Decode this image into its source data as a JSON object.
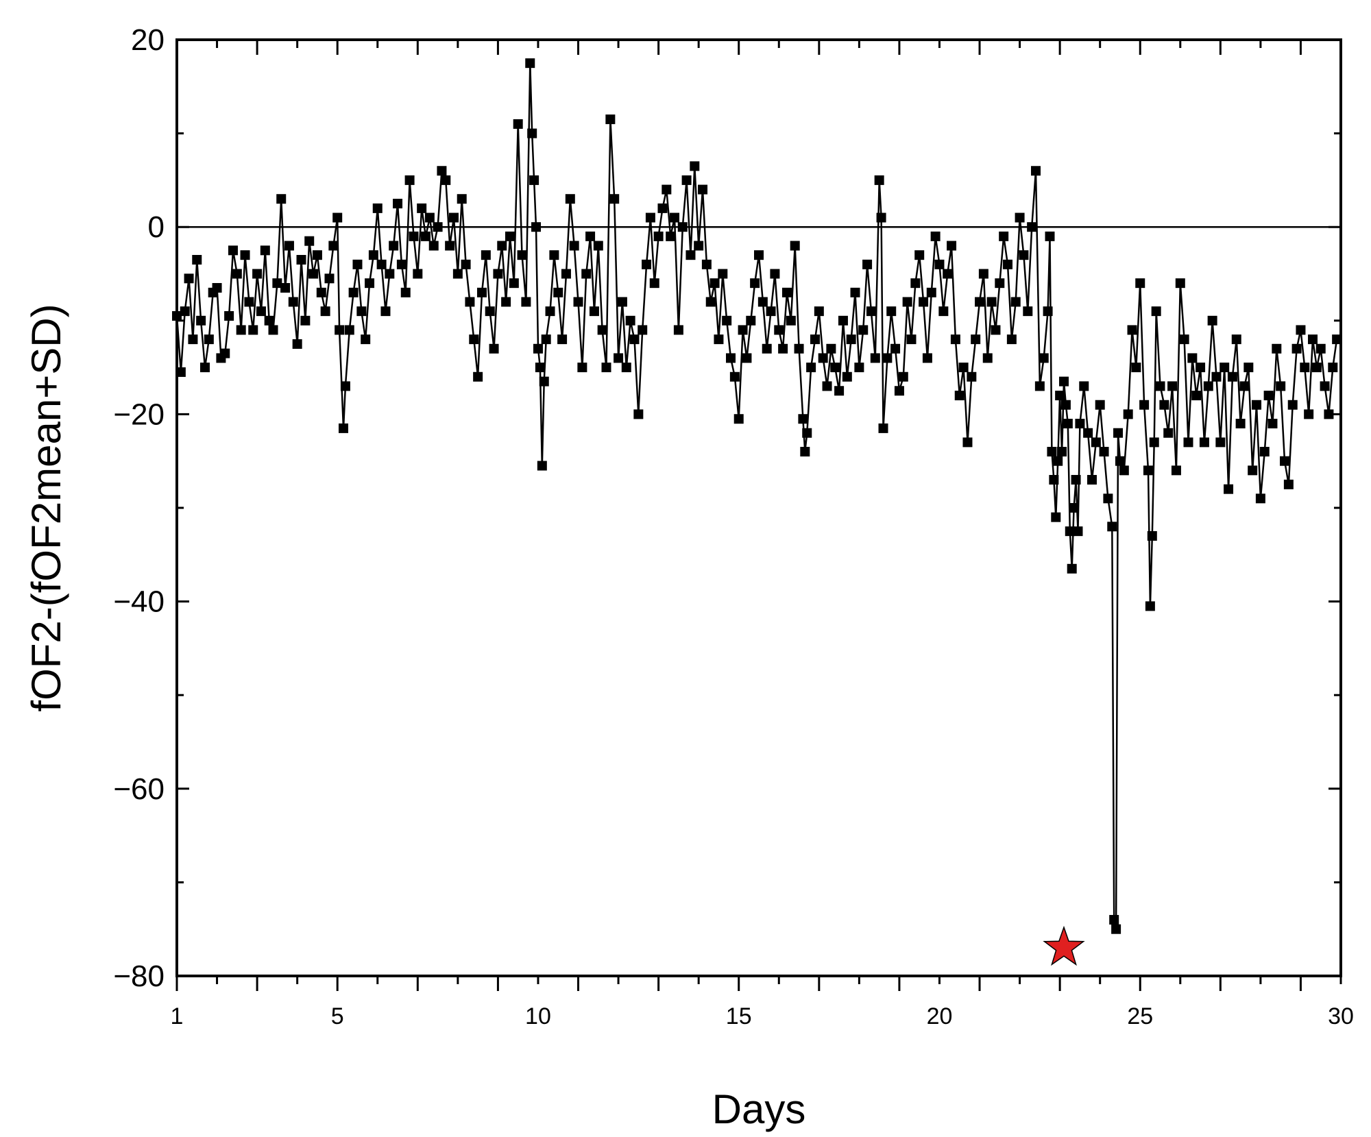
{
  "chart_data": {
    "type": "scatter",
    "title": "",
    "xlabel": "Days",
    "ylabel": "fOF2-(fOF2mean+SD)",
    "xlim": [
      1,
      30
    ],
    "ylim": [
      -80,
      20
    ],
    "grid": false,
    "x_ticks": [
      1,
      5,
      10,
      15,
      20,
      25,
      30
    ],
    "x_tick_labels": [
      "1",
      "5",
      "10",
      "15",
      "20",
      "25",
      "30"
    ],
    "y_ticks": [
      20,
      0,
      -20,
      -40,
      -60,
      -80
    ],
    "y_tick_labels": [
      "20",
      "0",
      "−20",
      "−40",
      "−60",
      "−80"
    ],
    "reference_line": {
      "y": 0
    },
    "series": [
      {
        "marker": "square",
        "color": "#000000",
        "points": [
          [
            1.0,
            -9.5
          ],
          [
            1.1,
            -15.5
          ],
          [
            1.2,
            -9
          ],
          [
            1.3,
            -5.5
          ],
          [
            1.4,
            -12
          ],
          [
            1.5,
            -3.5
          ],
          [
            1.6,
            -10
          ],
          [
            1.7,
            -15
          ],
          [
            1.8,
            -12
          ],
          [
            1.9,
            -7
          ],
          [
            2.0,
            -6.5
          ],
          [
            2.1,
            -14
          ],
          [
            2.2,
            -13.5
          ],
          [
            2.3,
            -9.5
          ],
          [
            2.4,
            -2.5
          ],
          [
            2.5,
            -5
          ],
          [
            2.6,
            -11
          ],
          [
            2.7,
            -3
          ],
          [
            2.8,
            -8
          ],
          [
            2.9,
            -11
          ],
          [
            3.0,
            -5
          ],
          [
            3.1,
            -9
          ],
          [
            3.2,
            -2.5
          ],
          [
            3.3,
            -10
          ],
          [
            3.4,
            -11
          ],
          [
            3.5,
            -6
          ],
          [
            3.6,
            3
          ],
          [
            3.7,
            -6.5
          ],
          [
            3.8,
            -2
          ],
          [
            3.9,
            -8
          ],
          [
            4.0,
            -12.5
          ],
          [
            4.1,
            -3.5
          ],
          [
            4.2,
            -10
          ],
          [
            4.3,
            -1.5
          ],
          [
            4.4,
            -5
          ],
          [
            4.5,
            -3
          ],
          [
            4.6,
            -7
          ],
          [
            4.7,
            -9
          ],
          [
            4.8,
            -5.5
          ],
          [
            4.9,
            -2
          ],
          [
            5.0,
            1
          ],
          [
            5.05,
            -11
          ],
          [
            5.15,
            -21.5
          ],
          [
            5.2,
            -17
          ],
          [
            5.3,
            -11
          ],
          [
            5.4,
            -7
          ],
          [
            5.5,
            -4
          ],
          [
            5.6,
            -9
          ],
          [
            5.7,
            -12
          ],
          [
            5.8,
            -6
          ],
          [
            5.9,
            -3
          ],
          [
            6.0,
            2
          ],
          [
            6.1,
            -4
          ],
          [
            6.2,
            -9
          ],
          [
            6.3,
            -5
          ],
          [
            6.4,
            -2
          ],
          [
            6.5,
            2.5
          ],
          [
            6.6,
            -4
          ],
          [
            6.7,
            -7
          ],
          [
            6.8,
            5
          ],
          [
            6.9,
            -1
          ],
          [
            7.0,
            -5
          ],
          [
            7.1,
            2
          ],
          [
            7.2,
            -1
          ],
          [
            7.3,
            1
          ],
          [
            7.4,
            -2
          ],
          [
            7.5,
            0
          ],
          [
            7.6,
            6
          ],
          [
            7.7,
            5
          ],
          [
            7.8,
            -2
          ],
          [
            7.9,
            1
          ],
          [
            8.0,
            -5
          ],
          [
            8.1,
            3
          ],
          [
            8.2,
            -4
          ],
          [
            8.3,
            -8
          ],
          [
            8.4,
            -12
          ],
          [
            8.5,
            -16
          ],
          [
            8.6,
            -7
          ],
          [
            8.7,
            -3
          ],
          [
            8.8,
            -9
          ],
          [
            8.9,
            -13
          ],
          [
            9.0,
            -5
          ],
          [
            9.1,
            -2
          ],
          [
            9.2,
            -8
          ],
          [
            9.3,
            -1
          ],
          [
            9.4,
            -6
          ],
          [
            9.5,
            11
          ],
          [
            9.6,
            -3
          ],
          [
            9.7,
            -8
          ],
          [
            9.8,
            17.5
          ],
          [
            9.85,
            10
          ],
          [
            9.9,
            5
          ],
          [
            9.95,
            0
          ],
          [
            10.0,
            -13
          ],
          [
            10.05,
            -15
          ],
          [
            10.1,
            -25.5
          ],
          [
            10.15,
            -16.5
          ],
          [
            10.2,
            -12
          ],
          [
            10.3,
            -9
          ],
          [
            10.4,
            -3
          ],
          [
            10.5,
            -7
          ],
          [
            10.6,
            -12
          ],
          [
            10.7,
            -5
          ],
          [
            10.8,
            3
          ],
          [
            10.9,
            -2
          ],
          [
            11.0,
            -8
          ],
          [
            11.1,
            -15
          ],
          [
            11.2,
            -5
          ],
          [
            11.3,
            -1
          ],
          [
            11.4,
            -9
          ],
          [
            11.5,
            -2
          ],
          [
            11.6,
            -11
          ],
          [
            11.7,
            -15
          ],
          [
            11.8,
            11.5
          ],
          [
            11.9,
            3
          ],
          [
            12.0,
            -14
          ],
          [
            12.1,
            -8
          ],
          [
            12.2,
            -15
          ],
          [
            12.3,
            -10
          ],
          [
            12.4,
            -12
          ],
          [
            12.5,
            -20
          ],
          [
            12.6,
            -11
          ],
          [
            12.7,
            -4
          ],
          [
            12.8,
            1
          ],
          [
            12.9,
            -6
          ],
          [
            13.0,
            -1
          ],
          [
            13.1,
            2
          ],
          [
            13.2,
            4
          ],
          [
            13.3,
            -1
          ],
          [
            13.4,
            1
          ],
          [
            13.5,
            -11
          ],
          [
            13.6,
            0
          ],
          [
            13.7,
            5
          ],
          [
            13.8,
            -3
          ],
          [
            13.9,
            6.5
          ],
          [
            14.0,
            -2
          ],
          [
            14.1,
            4
          ],
          [
            14.2,
            -4
          ],
          [
            14.3,
            -8
          ],
          [
            14.4,
            -6
          ],
          [
            14.5,
            -12
          ],
          [
            14.6,
            -5
          ],
          [
            14.7,
            -10
          ],
          [
            14.8,
            -14
          ],
          [
            14.9,
            -16
          ],
          [
            15.0,
            -20.5
          ],
          [
            15.1,
            -11
          ],
          [
            15.2,
            -14
          ],
          [
            15.3,
            -10
          ],
          [
            15.4,
            -6
          ],
          [
            15.5,
            -3
          ],
          [
            15.6,
            -8
          ],
          [
            15.7,
            -13
          ],
          [
            15.8,
            -9
          ],
          [
            15.9,
            -5
          ],
          [
            16.0,
            -11
          ],
          [
            16.1,
            -13
          ],
          [
            16.2,
            -7
          ],
          [
            16.3,
            -10
          ],
          [
            16.4,
            -2
          ],
          [
            16.5,
            -13
          ],
          [
            16.6,
            -20.5
          ],
          [
            16.65,
            -24
          ],
          [
            16.7,
            -22
          ],
          [
            16.8,
            -15
          ],
          [
            16.9,
            -12
          ],
          [
            17.0,
            -9
          ],
          [
            17.1,
            -14
          ],
          [
            17.2,
            -17
          ],
          [
            17.3,
            -13
          ],
          [
            17.4,
            -15
          ],
          [
            17.5,
            -17.5
          ],
          [
            17.6,
            -10
          ],
          [
            17.7,
            -16
          ],
          [
            17.8,
            -12
          ],
          [
            17.9,
            -7
          ],
          [
            18.0,
            -15
          ],
          [
            18.1,
            -11
          ],
          [
            18.2,
            -4
          ],
          [
            18.3,
            -9
          ],
          [
            18.4,
            -14
          ],
          [
            18.5,
            5
          ],
          [
            18.55,
            1
          ],
          [
            18.6,
            -21.5
          ],
          [
            18.7,
            -14
          ],
          [
            18.8,
            -9
          ],
          [
            18.9,
            -13
          ],
          [
            19.0,
            -17.5
          ],
          [
            19.1,
            -16
          ],
          [
            19.2,
            -8
          ],
          [
            19.3,
            -12
          ],
          [
            19.4,
            -6
          ],
          [
            19.5,
            -3
          ],
          [
            19.6,
            -8
          ],
          [
            19.7,
            -14
          ],
          [
            19.8,
            -7
          ],
          [
            19.9,
            -1
          ],
          [
            20.0,
            -4
          ],
          [
            20.1,
            -9
          ],
          [
            20.2,
            -5
          ],
          [
            20.3,
            -2
          ],
          [
            20.4,
            -12
          ],
          [
            20.5,
            -18
          ],
          [
            20.6,
            -15
          ],
          [
            20.7,
            -23
          ],
          [
            20.8,
            -16
          ],
          [
            20.9,
            -12
          ],
          [
            21.0,
            -8
          ],
          [
            21.1,
            -5
          ],
          [
            21.2,
            -14
          ],
          [
            21.3,
            -8
          ],
          [
            21.4,
            -11
          ],
          [
            21.5,
            -6
          ],
          [
            21.6,
            -1
          ],
          [
            21.7,
            -4
          ],
          [
            21.8,
            -12
          ],
          [
            21.9,
            -8
          ],
          [
            22.0,
            1
          ],
          [
            22.1,
            -3
          ],
          [
            22.2,
            -9
          ],
          [
            22.3,
            0
          ],
          [
            22.4,
            6
          ],
          [
            22.5,
            -17
          ],
          [
            22.6,
            -14
          ],
          [
            22.7,
            -9
          ],
          [
            22.75,
            -1
          ],
          [
            22.8,
            -24
          ],
          [
            22.85,
            -27
          ],
          [
            22.9,
            -31
          ],
          [
            22.95,
            -25
          ],
          [
            23.0,
            -18
          ],
          [
            23.05,
            -24
          ],
          [
            23.1,
            -16.5
          ],
          [
            23.15,
            -19
          ],
          [
            23.2,
            -21
          ],
          [
            23.25,
            -32.5
          ],
          [
            23.3,
            -36.5
          ],
          [
            23.35,
            -30
          ],
          [
            23.4,
            -27
          ],
          [
            23.45,
            -32.5
          ],
          [
            23.5,
            -21
          ],
          [
            23.6,
            -17
          ],
          [
            23.7,
            -22
          ],
          [
            23.8,
            -27
          ],
          [
            23.9,
            -23
          ],
          [
            24.0,
            -19
          ],
          [
            24.1,
            -24
          ],
          [
            24.2,
            -29
          ],
          [
            24.3,
            -32
          ],
          [
            24.35,
            -74
          ],
          [
            24.4,
            -75
          ],
          [
            24.45,
            -22
          ],
          [
            24.5,
            -25
          ],
          [
            24.6,
            -26
          ],
          [
            24.7,
            -20
          ],
          [
            24.8,
            -11
          ],
          [
            24.9,
            -15
          ],
          [
            25.0,
            -6
          ],
          [
            25.1,
            -19
          ],
          [
            25.2,
            -26
          ],
          [
            25.25,
            -40.5
          ],
          [
            25.3,
            -33
          ],
          [
            25.35,
            -23
          ],
          [
            25.4,
            -9
          ],
          [
            25.5,
            -17
          ],
          [
            25.6,
            -19
          ],
          [
            25.7,
            -22
          ],
          [
            25.8,
            -17
          ],
          [
            25.9,
            -26
          ],
          [
            26.0,
            -6
          ],
          [
            26.1,
            -12
          ],
          [
            26.2,
            -23
          ],
          [
            26.3,
            -14
          ],
          [
            26.4,
            -18
          ],
          [
            26.5,
            -15
          ],
          [
            26.6,
            -23
          ],
          [
            26.7,
            -17
          ],
          [
            26.8,
            -10
          ],
          [
            26.9,
            -16
          ],
          [
            27.0,
            -23
          ],
          [
            27.1,
            -15
          ],
          [
            27.2,
            -28
          ],
          [
            27.3,
            -16
          ],
          [
            27.4,
            -12
          ],
          [
            27.5,
            -21
          ],
          [
            27.6,
            -17
          ],
          [
            27.7,
            -15
          ],
          [
            27.8,
            -26
          ],
          [
            27.9,
            -19
          ],
          [
            28.0,
            -29
          ],
          [
            28.1,
            -24
          ],
          [
            28.2,
            -18
          ],
          [
            28.3,
            -21
          ],
          [
            28.4,
            -13
          ],
          [
            28.5,
            -17
          ],
          [
            28.6,
            -25
          ],
          [
            28.7,
            -27.5
          ],
          [
            28.8,
            -19
          ],
          [
            28.9,
            -13
          ],
          [
            29.0,
            -11
          ],
          [
            29.1,
            -15
          ],
          [
            29.2,
            -20
          ],
          [
            29.3,
            -12
          ],
          [
            29.4,
            -15
          ],
          [
            29.5,
            -13
          ],
          [
            29.6,
            -17
          ],
          [
            29.7,
            -20
          ],
          [
            29.8,
            -15
          ],
          [
            29.9,
            -12
          ]
        ]
      }
    ],
    "annotations": [
      {
        "type": "star",
        "x": 23.1,
        "y": -77,
        "color": "#e02020"
      }
    ]
  }
}
